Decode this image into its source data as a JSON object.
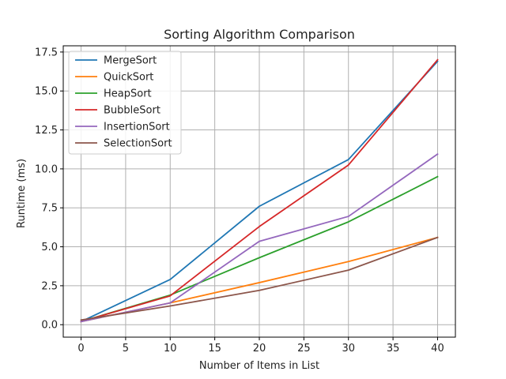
{
  "chart_data": {
    "type": "line",
    "title": "Sorting Algorithm Comparison",
    "xlabel": "Number of Items in List",
    "ylabel": "Runtime (ms)",
    "xlim": [
      -2,
      42
    ],
    "ylim": [
      -0.8,
      17.9
    ],
    "x_ticks": [
      0,
      5,
      10,
      15,
      20,
      25,
      30,
      35,
      40
    ],
    "y_ticks": [
      0.0,
      2.5,
      5.0,
      7.5,
      10.0,
      12.5,
      15.0,
      17.5
    ],
    "x_tick_labels": [
      "0",
      "5",
      "10",
      "15",
      "20",
      "25",
      "30",
      "35",
      "40"
    ],
    "y_tick_labels": [
      "0.0",
      "2.5",
      "5.0",
      "7.5",
      "10.0",
      "12.5",
      "15.0",
      "17.5"
    ],
    "grid": true,
    "legend_position": "top-left",
    "x": [
      0,
      10,
      20,
      30,
      40
    ],
    "series": [
      {
        "name": "MergeSort",
        "color": "#1f77b4",
        "values": [
          0.2,
          2.9,
          7.6,
          10.6,
          16.9
        ]
      },
      {
        "name": "QuickSort",
        "color": "#ff7f0e",
        "values": [
          0.2,
          1.4,
          2.7,
          4.05,
          5.6
        ]
      },
      {
        "name": "HeapSort",
        "color": "#2ca02c",
        "values": [
          0.2,
          1.9,
          4.3,
          6.6,
          9.5
        ]
      },
      {
        "name": "BubbleSort",
        "color": "#d62728",
        "values": [
          0.2,
          1.85,
          6.3,
          10.25,
          17.0
        ]
      },
      {
        "name": "InsertionSort",
        "color": "#9467bd",
        "values": [
          0.2,
          1.4,
          5.35,
          6.95,
          10.95
        ]
      },
      {
        "name": "SelectionSort",
        "color": "#8c564b",
        "values": [
          0.3,
          1.2,
          2.2,
          3.5,
          5.6
        ]
      }
    ]
  }
}
